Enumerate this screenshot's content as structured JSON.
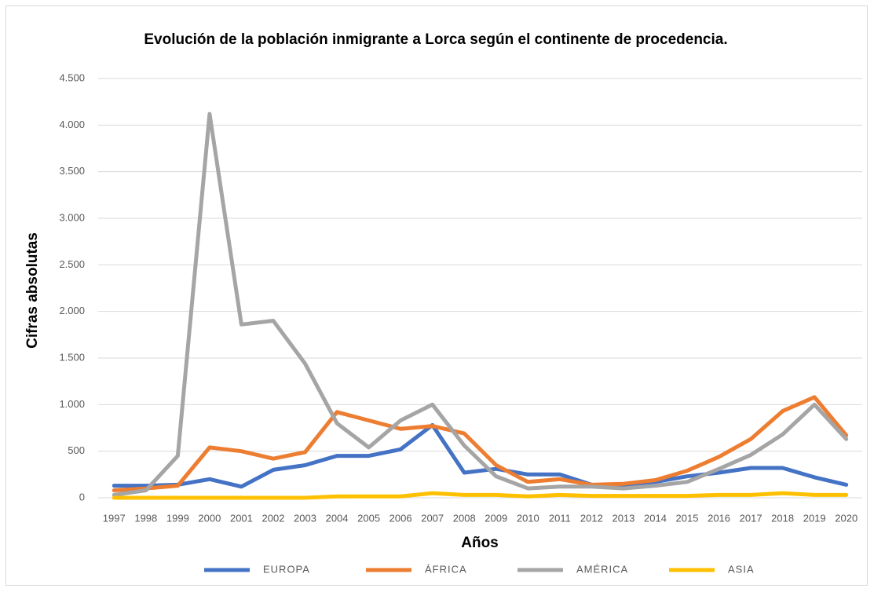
{
  "chart_data": {
    "type": "line",
    "title": "Evolución  de la población  inmigrante a Lorca según el continente de procedencia.",
    "y_label": "Cifras absolutas",
    "x_label": "Años",
    "categories": [
      "1997",
      "1998",
      "1999",
      "2000",
      "2001",
      "2002",
      "2003",
      "2004",
      "2005",
      "2006",
      "2007",
      "2008",
      "2009",
      "2010",
      "2011",
      "2012",
      "2013",
      "2014",
      "2015",
      "2016",
      "2017",
      "2018",
      "2019",
      "2020"
    ],
    "series": [
      {
        "name": "EUROPA",
        "color": "#4472c4",
        "values": [
          130,
          130,
          140,
          200,
          120,
          300,
          350,
          450,
          450,
          520,
          780,
          270,
          310,
          250,
          250,
          140,
          120,
          170,
          230,
          270,
          320,
          320,
          220,
          140
        ]
      },
      {
        "name": "ÁFRICA",
        "color": "#ed7d31",
        "values": [
          80,
          100,
          130,
          540,
          500,
          420,
          490,
          920,
          830,
          740,
          770,
          690,
          350,
          170,
          200,
          140,
          150,
          190,
          290,
          440,
          630,
          930,
          1080,
          670
        ]
      },
      {
        "name": "AMÉRICA",
        "color": "#a5a5a5",
        "values": [
          30,
          80,
          450,
          4120,
          1860,
          1900,
          1440,
          800,
          540,
          830,
          1000,
          560,
          230,
          100,
          120,
          120,
          100,
          130,
          170,
          310,
          460,
          680,
          1000,
          630
        ]
      },
      {
        "name": "ASIA",
        "color": "#ffc000",
        "values": [
          0,
          0,
          0,
          0,
          0,
          0,
          0,
          15,
          15,
          15,
          50,
          30,
          30,
          15,
          30,
          20,
          20,
          20,
          20,
          30,
          30,
          50,
          30,
          30
        ]
      }
    ],
    "ylim": [
      0,
      4500
    ],
    "yticks": [
      0,
      500,
      {
        "value": 1000,
        "label": "1.000"
      },
      {
        "value": 1500,
        "label": "1.500"
      },
      {
        "value": 2000,
        "label": "2.000"
      },
      {
        "value": 2500,
        "label": "2.500"
      },
      {
        "value": 3000,
        "label": "3.000"
      },
      {
        "value": 3500,
        "label": "3.500"
      },
      {
        "value": 4000,
        "label": "4.000"
      },
      {
        "value": 4500,
        "label": "4.500"
      }
    ],
    "grid": true,
    "legend": "bottom"
  }
}
